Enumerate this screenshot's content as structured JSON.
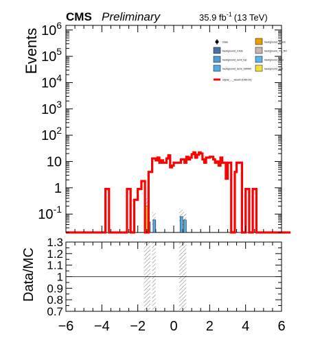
{
  "header": {
    "experiment": "CMS",
    "status": "Preliminary",
    "lumi": "35.9 fb",
    "lumi_exp": "-1",
    "energy": "(13 TeV)"
  },
  "chart_data": [
    {
      "type": "histogram",
      "ylabel": "Events",
      "yscale": "log",
      "xlim": [
        -6,
        6
      ],
      "ylim": [
        0.02,
        1500000
      ],
      "y_ticks": [
        {
          "value": 0.1,
          "label": "10",
          "exp": "-1"
        },
        {
          "value": 1,
          "label": "1",
          "exp": ""
        },
        {
          "value": 10,
          "label": "10",
          "exp": ""
        },
        {
          "value": 100,
          "label": "10",
          "exp": "2"
        },
        {
          "value": 1000,
          "label": "10",
          "exp": "3"
        },
        {
          "value": 10000,
          "label": "10",
          "exp": "4"
        },
        {
          "value": 100000,
          "label": "10",
          "exp": "5"
        },
        {
          "value": 1000000,
          "label": "10",
          "exp": "6"
        }
      ],
      "legend": {
        "position": "top-right",
        "entries": [
          {
            "label": "Data",
            "kind": "marker",
            "color": "#000000"
          },
          {
            "label": "background_WJets",
            "kind": "box",
            "color": "#e8a000"
          },
          {
            "label": "background_ZJets",
            "kind": "box",
            "color": "#4a6fa5"
          },
          {
            "label": "background_VV_RH",
            "kind": "box",
            "color": "#c8b4b4"
          },
          {
            "label": "background_semi_top",
            "kind": "box",
            "color": "#4f9ad0"
          },
          {
            "label": "background_Wss",
            "kind": "box",
            "color": "#5fb0e8"
          },
          {
            "label": "background_semi_SSWW",
            "kind": "box",
            "color": "#55aae0"
          },
          {
            "label": "background_qcd",
            "kind": "box",
            "color": "#f0e040"
          },
          {
            "label": "signal_..._vbswh [1000.0x]",
            "kind": "line",
            "color": "#ff0000"
          }
        ]
      },
      "signal": {
        "color": "#ff0000",
        "bin_edges_from": -6,
        "bin_width": 0.1,
        "values": [
          0,
          0,
          0,
          0,
          0,
          0,
          0,
          0,
          0,
          0,
          0,
          0,
          0,
          0,
          0,
          0,
          0,
          0,
          0,
          0,
          0,
          0,
          0.9,
          0.9,
          0,
          0,
          0,
          0,
          0,
          0,
          0,
          0,
          0,
          0,
          0.9,
          0.9,
          0,
          0,
          0.35,
          0.35,
          0.9,
          0.9,
          1.8,
          1.8,
          0,
          0,
          4,
          4,
          13,
          13,
          11,
          14,
          9,
          11,
          9,
          9,
          13,
          17,
          6,
          7,
          9,
          9,
          9,
          9,
          12,
          12,
          9,
          15,
          12,
          14,
          19,
          22,
          14,
          18,
          22,
          20,
          12,
          9,
          14,
          14,
          15,
          15,
          12,
          9,
          10,
          7,
          14,
          9,
          9,
          2.2,
          9,
          9,
          0,
          0,
          4,
          9,
          9,
          9,
          0,
          0,
          0.9,
          0.9,
          0,
          0,
          0.9,
          0.9,
          0,
          0,
          0,
          0,
          0,
          0,
          0,
          0,
          0,
          0,
          0,
          0,
          0,
          0,
          0,
          0,
          0,
          0,
          0
        ]
      },
      "backgrounds": [
        {
          "name": "background_qcd",
          "color": "#f0e040",
          "x0": -1.6,
          "x1": -1.45,
          "value": 0.2
        },
        {
          "name": "background_semi_SSWW",
          "color": "#55aae0",
          "x0": -1.45,
          "x1": -1.3,
          "value": 0.05
        },
        {
          "name": "background_semi_SSWW",
          "color": "#55aae0",
          "x0": -1.15,
          "x1": -1.0,
          "value": 0.06
        },
        {
          "name": "background_semi_SSWW",
          "color": "#55aae0",
          "x0": 0.35,
          "x1": 0.5,
          "value": 0.08
        },
        {
          "name": "background_semi_SSWW",
          "color": "#55aae0",
          "x0": 0.55,
          "x1": 0.7,
          "value": 0.06
        }
      ],
      "uncertainty_bands": [
        {
          "x0": -1.65,
          "x1": -1.45,
          "low": 0.12,
          "high": 0.4
        },
        {
          "x0": -1.2,
          "x1": -1.0,
          "low": 0.03,
          "high": 0.12
        },
        {
          "x0": 0.3,
          "x1": 0.5,
          "low": 0.05,
          "high": 0.16
        },
        {
          "x0": 0.5,
          "x1": 0.7,
          "low": 0.03,
          "high": 0.12
        }
      ]
    },
    {
      "type": "ratio",
      "ylabel": "Data/MC",
      "xlim": [
        -6,
        6
      ],
      "ylim": [
        0.7,
        1.3
      ],
      "reference": 1.0,
      "y_ticks": [
        0.7,
        0.8,
        0.9,
        1,
        1.1,
        1.2,
        1.3
      ],
      "y_tick_labels": [
        "0.7",
        "0.8",
        "0.9",
        "1",
        "1.1",
        "1.2",
        "1.3"
      ],
      "x_ticks": [
        -6,
        -4,
        -2,
        0,
        2,
        4,
        6
      ],
      "x_tick_labels": [
        "−6",
        "−4",
        "−2",
        "0",
        "2",
        "4",
        "6"
      ],
      "hatched_bins": [
        {
          "x0": -1.65,
          "x1": -1.3
        },
        {
          "x0": -1.2,
          "x1": -1.0
        },
        {
          "x0": 0.3,
          "x1": 0.5
        },
        {
          "x0": 0.5,
          "x1": 0.7
        }
      ]
    }
  ]
}
